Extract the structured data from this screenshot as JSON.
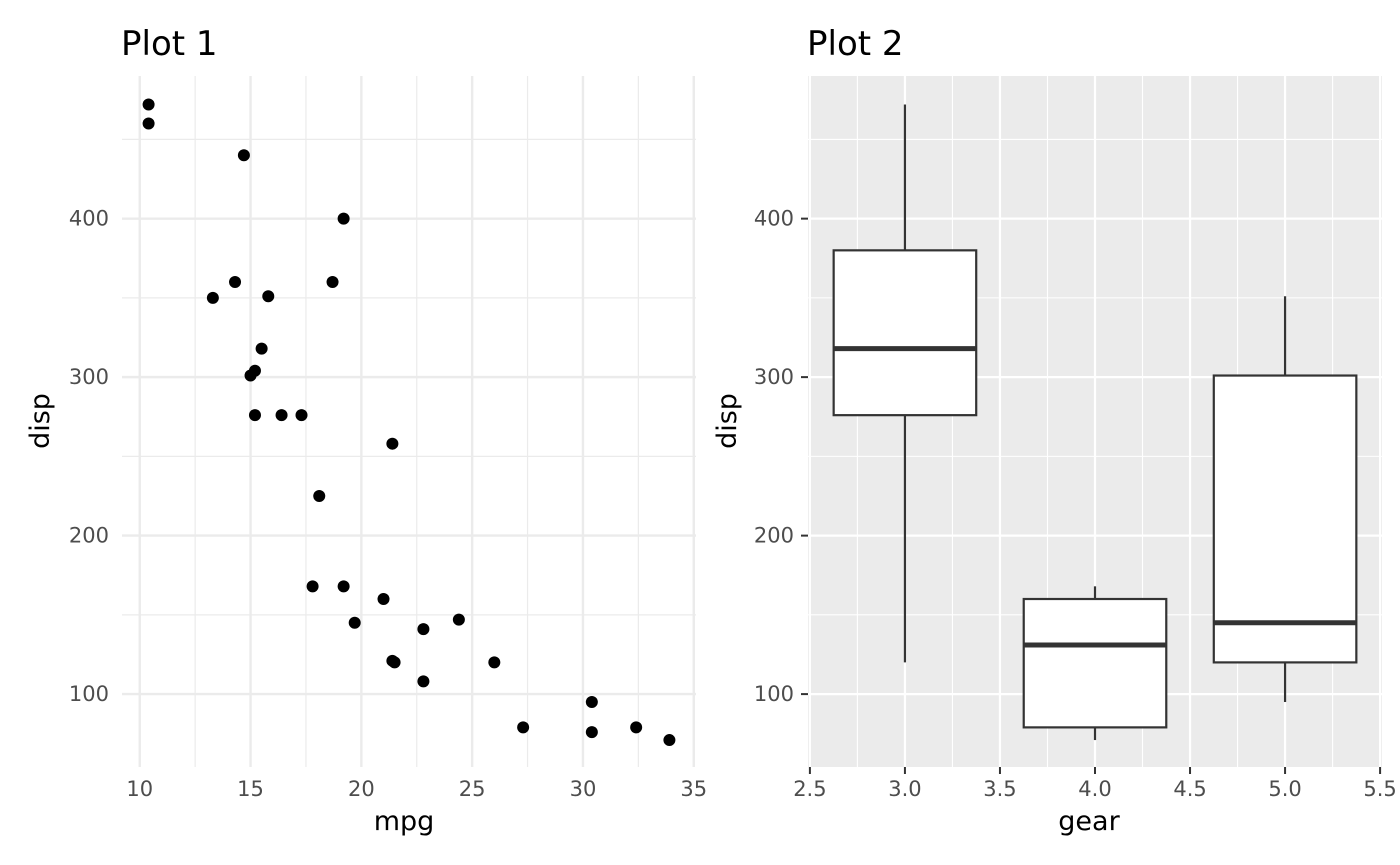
{
  "chart_data": [
    {
      "type": "scatter",
      "title": "Plot 1",
      "xlabel": "mpg",
      "ylabel": "disp",
      "xlim": [
        9.2,
        35.1
      ],
      "ylim": [
        54,
        490
      ],
      "xticks": [
        10,
        15,
        20,
        25,
        30,
        35
      ],
      "xtick_labels": [
        "10",
        "15",
        "20",
        "25",
        "30",
        "35"
      ],
      "yticks": [
        100,
        200,
        300,
        400
      ],
      "ytick_labels": [
        "100",
        "200",
        "300",
        "400"
      ],
      "grid": true,
      "theme": "minimal",
      "points": [
        {
          "x": 10.4,
          "y": 472
        },
        {
          "x": 10.4,
          "y": 460
        },
        {
          "x": 14.7,
          "y": 440
        },
        {
          "x": 19.2,
          "y": 400
        },
        {
          "x": 18.7,
          "y": 360
        },
        {
          "x": 14.3,
          "y": 360
        },
        {
          "x": 13.3,
          "y": 350
        },
        {
          "x": 15.8,
          "y": 351
        },
        {
          "x": 15.5,
          "y": 318
        },
        {
          "x": 15.2,
          "y": 304
        },
        {
          "x": 15.0,
          "y": 301
        },
        {
          "x": 15.2,
          "y": 276
        },
        {
          "x": 16.4,
          "y": 276
        },
        {
          "x": 17.3,
          "y": 276
        },
        {
          "x": 21.4,
          "y": 258
        },
        {
          "x": 18.1,
          "y": 225
        },
        {
          "x": 17.8,
          "y": 168
        },
        {
          "x": 19.2,
          "y": 168
        },
        {
          "x": 21.0,
          "y": 160
        },
        {
          "x": 24.4,
          "y": 147
        },
        {
          "x": 19.7,
          "y": 145
        },
        {
          "x": 22.8,
          "y": 141
        },
        {
          "x": 21.4,
          "y": 121
        },
        {
          "x": 21.5,
          "y": 120
        },
        {
          "x": 26.0,
          "y": 120
        },
        {
          "x": 22.8,
          "y": 108
        },
        {
          "x": 30.4,
          "y": 95
        },
        {
          "x": 27.3,
          "y": 79
        },
        {
          "x": 32.4,
          "y": 79
        },
        {
          "x": 30.4,
          "y": 76
        },
        {
          "x": 33.9,
          "y": 71
        }
      ],
      "colors": {
        "point": "#000000",
        "grid": "#ebebeb"
      }
    },
    {
      "type": "box",
      "title": "Plot 2",
      "xlabel": "gear",
      "ylabel": "disp",
      "xlim": [
        2.49,
        5.51
      ],
      "ylim": [
        54,
        490
      ],
      "xticks": [
        2.5,
        3.0,
        3.5,
        4.0,
        4.5,
        5.0,
        5.5
      ],
      "xtick_labels": [
        "2.5",
        "3.0",
        "3.5",
        "4.0",
        "4.5",
        "5.0",
        "5.5"
      ],
      "yticks": [
        100,
        200,
        300,
        400
      ],
      "ytick_labels": [
        "100",
        "200",
        "300",
        "400"
      ],
      "grid": true,
      "theme": "grey",
      "boxes": [
        {
          "x": 3,
          "whisker_low": 120,
          "q1": 276,
          "median": 318,
          "q3": 380,
          "whisker_high": 472
        },
        {
          "x": 4,
          "whisker_low": 71,
          "q1": 79,
          "median": 131,
          "q3": 160,
          "whisker_high": 168
        },
        {
          "x": 5,
          "whisker_low": 95,
          "q1": 120,
          "median": 145,
          "q3": 301,
          "whisker_high": 351
        }
      ],
      "box_width": 0.75,
      "colors": {
        "panel": "#ebebeb",
        "grid": "#ffffff",
        "box_line": "#333333",
        "box_fill": "#ffffff",
        "tick": "#333333"
      }
    }
  ]
}
